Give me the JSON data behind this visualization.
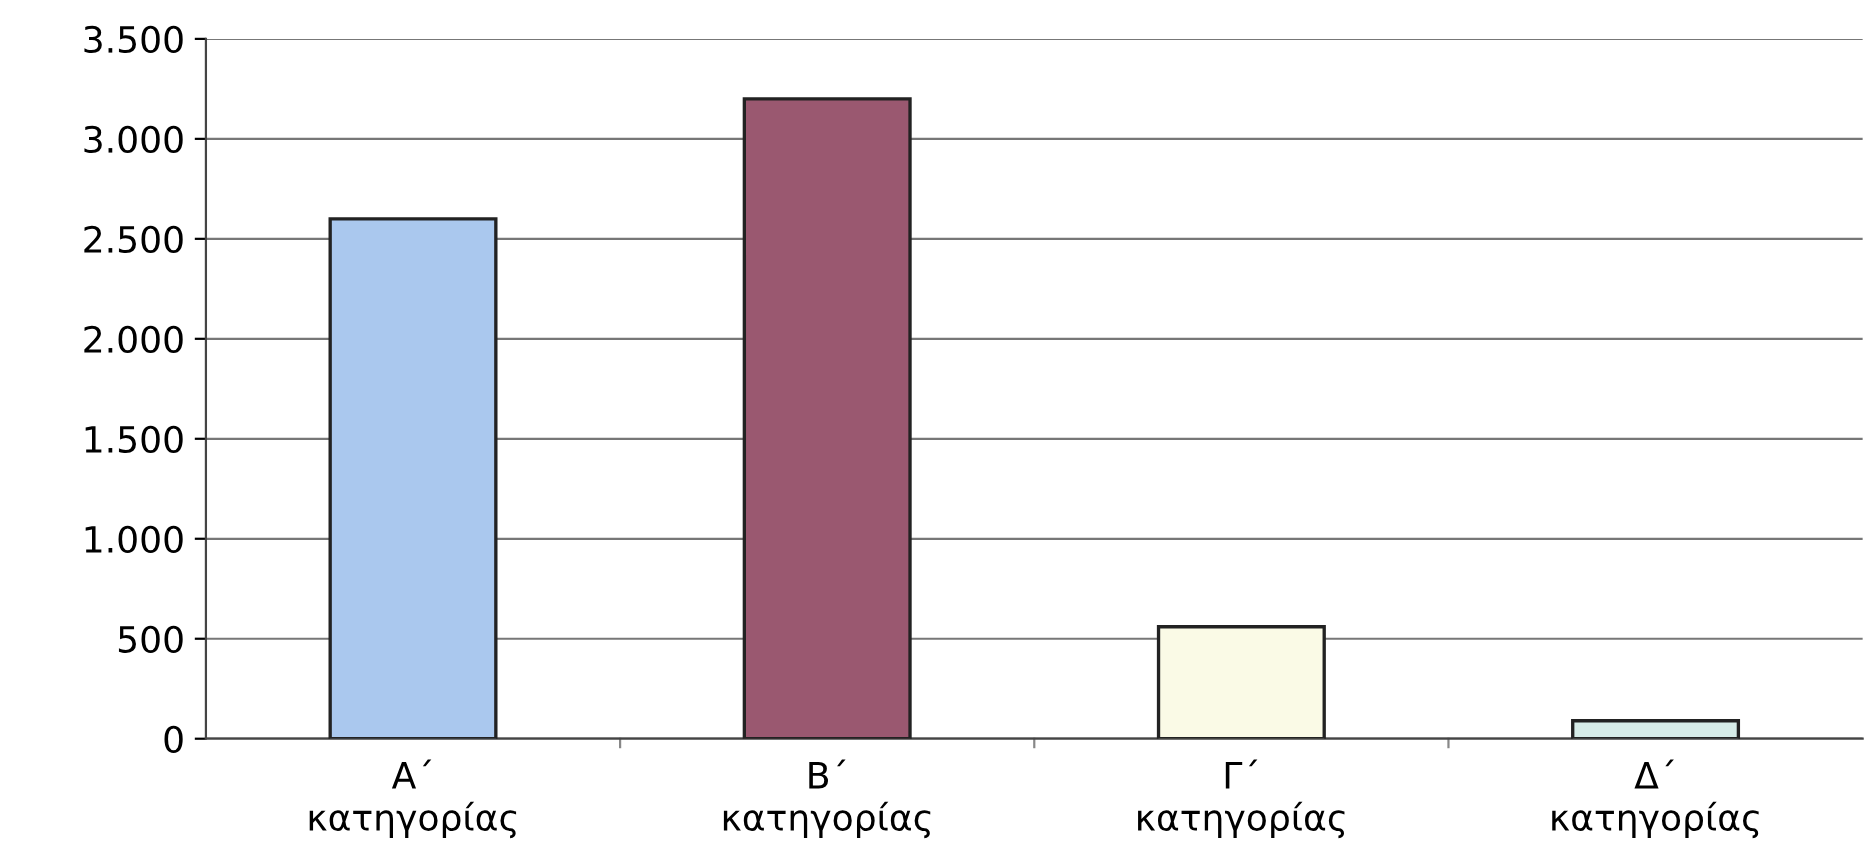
{
  "chart_data": {
    "type": "bar",
    "categories": [
      "Α΄\nκατηγορίας",
      "Β΄\nκατηγορίας",
      "Γ΄\nκατηγορίας",
      "Δ΄\nκατηγορίας"
    ],
    "values": [
      2600,
      3200,
      560,
      90
    ],
    "colors": [
      "#aac8ee",
      "#9a5870",
      "#fafae6",
      "#d6ece8"
    ],
    "ylim": [
      0,
      3500
    ],
    "yticks": [
      {
        "value": 0,
        "label": "0"
      },
      {
        "value": 500,
        "label": "500"
      },
      {
        "value": 1000,
        "label": "1.000"
      },
      {
        "value": 1500,
        "label": "1.500"
      },
      {
        "value": 2000,
        "label": "2.000"
      },
      {
        "value": 2500,
        "label": "2.500"
      },
      {
        "value": 3000,
        "label": "3.000"
      },
      {
        "value": 3500,
        "label": "3.500"
      }
    ],
    "grid": "y",
    "legend": false
  }
}
